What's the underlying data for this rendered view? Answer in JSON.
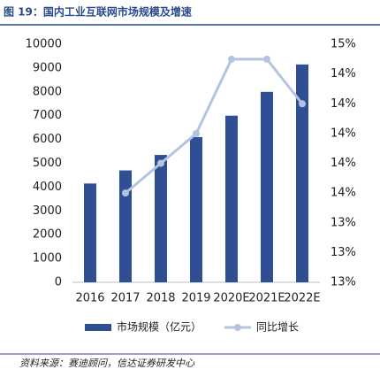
{
  "title": "图 19：国内工业互联网市场规模及增速",
  "source": "资料来源：赛迪顾问，信达证券研发中心",
  "chart_data": {
    "type": "bar",
    "categories": [
      "2016",
      "2017",
      "2018",
      "2019",
      "2020E",
      "2021E",
      "2022E"
    ],
    "series": [
      {
        "name": "市场规模（亿元）",
        "color": "#2f4f94",
        "values": [
          4150,
          4700,
          5350,
          6100,
          7000,
          8000,
          9150
        ]
      },
      {
        "name": "同比增长",
        "color": "#b4c4e0",
        "axis": "y2",
        "type": "line",
        "values": [
          null,
          13.6,
          13.8,
          14.0,
          14.5,
          14.5,
          14.2
        ]
      }
    ],
    "ylim": [
      0,
      10000
    ],
    "yticks": [
      0,
      1000,
      2000,
      3000,
      4000,
      5000,
      6000,
      7000,
      8000,
      9000,
      10000
    ],
    "y2lim": [
      13.0,
      14.6
    ],
    "y2ticks": [
      {
        "value": 13.0,
        "label": "13%"
      },
      {
        "value": 13.2,
        "label": "13%"
      },
      {
        "value": 13.4,
        "label": "13%"
      },
      {
        "value": 13.6,
        "label": "14%"
      },
      {
        "value": 13.8,
        "label": "14%"
      },
      {
        "value": 14.0,
        "label": "14%"
      },
      {
        "value": 14.2,
        "label": "14%"
      },
      {
        "value": 14.4,
        "label": "14%"
      },
      {
        "value": 14.6,
        "label": "15%"
      }
    ],
    "legend": "bottom"
  }
}
